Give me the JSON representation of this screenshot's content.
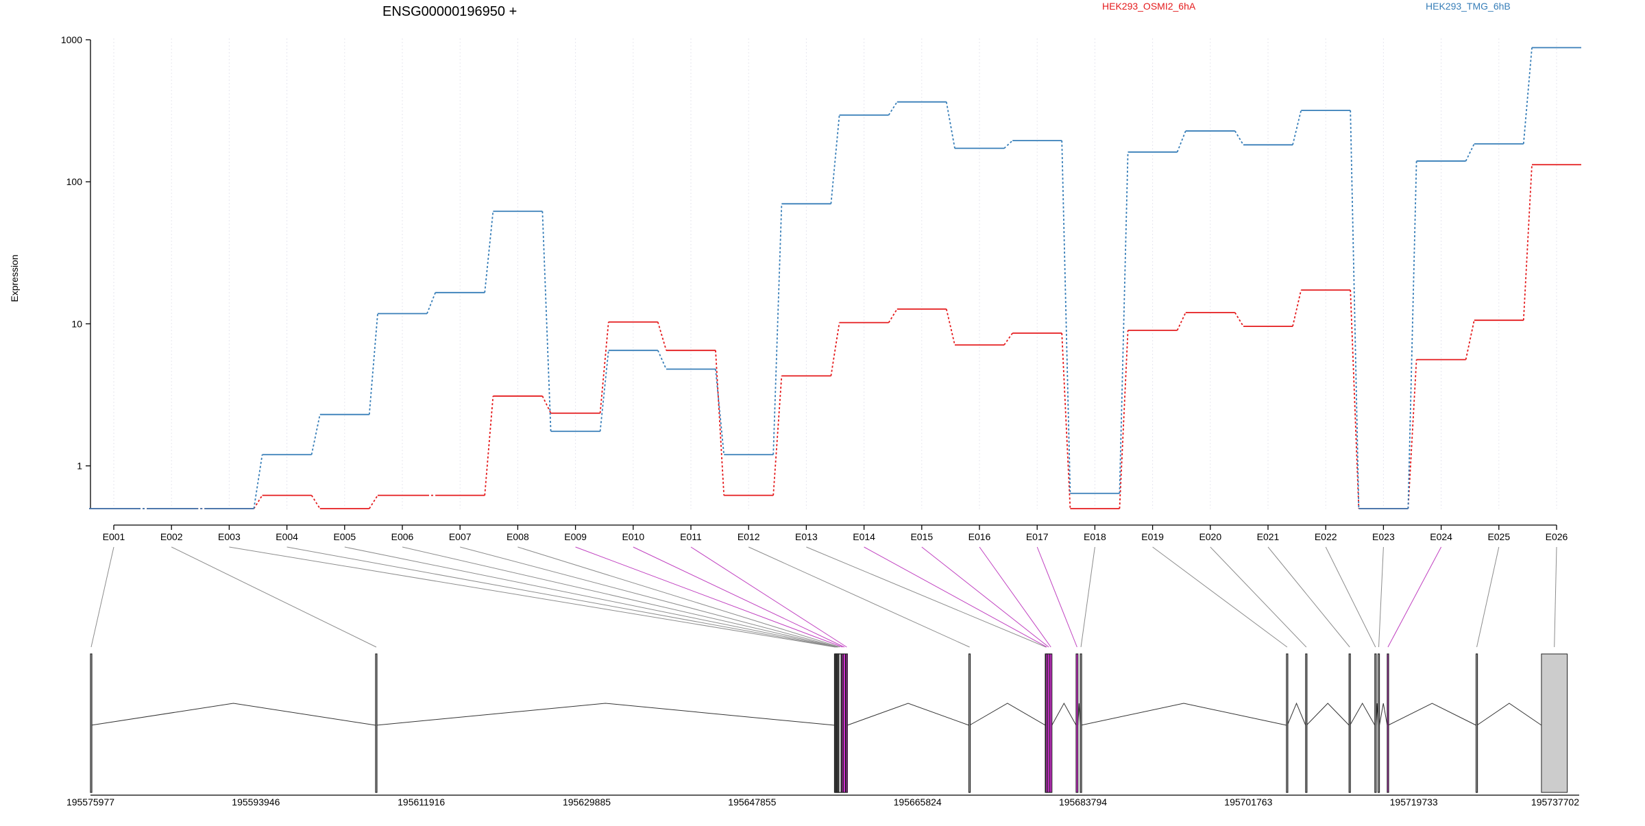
{
  "chart_data": {
    "type": "line",
    "title": "ENSG00000196950 +",
    "ylabel": "Expression",
    "xlabel": "",
    "y_scale": "log",
    "ylim": [
      0.5,
      1000
    ],
    "y_ticks": [
      1,
      10,
      100,
      1000
    ],
    "y_tick_labels": [
      "1",
      "10",
      "100",
      "1000"
    ],
    "grid": "vertical dotted lines at each exon",
    "legend_placement": "top",
    "categories": [
      "E001",
      "E002",
      "E003",
      "E004",
      "E005",
      "E006",
      "E007",
      "E008",
      "E009",
      "E010",
      "E011",
      "E012",
      "E013",
      "E014",
      "E015",
      "E016",
      "E017",
      "E018",
      "E019",
      "E020",
      "E021",
      "E022",
      "E023",
      "E024",
      "E025",
      "E026"
    ],
    "series": [
      {
        "name": "HEK293_OSMI2_6hA",
        "color": "#e41a1c",
        "values": [
          0.5,
          0.5,
          0.5,
          0.62,
          0.5,
          0.62,
          0.62,
          3.1,
          2.35,
          10.3,
          6.5,
          0.62,
          4.3,
          10.2,
          12.7,
          7.1,
          8.6,
          0.5,
          9.0,
          12.0,
          9.6,
          17.3,
          0.5,
          5.6,
          10.6,
          132
        ]
      },
      {
        "name": "HEK293_TMG_6hB",
        "color": "#377eb8",
        "values": [
          0.5,
          0.5,
          0.5,
          1.2,
          2.3,
          11.8,
          16.6,
          62,
          1.75,
          6.5,
          4.8,
          1.2,
          70,
          295,
          365,
          172,
          195,
          0.64,
          162,
          228,
          182,
          318,
          0.5,
          140,
          185,
          880
        ]
      }
    ],
    "gene_model": {
      "coordinate_labels": [
        "195575977",
        "195593946",
        "195611916",
        "195629885",
        "195647855",
        "195665824",
        "195683794",
        "195701763",
        "195719733",
        "195737702"
      ],
      "exons": [
        {
          "id": "E001",
          "start": 195575977,
          "end": 195576050,
          "highlight": false
        },
        {
          "id": "E002",
          "start": 195606950,
          "end": 195607030,
          "highlight": false
        },
        {
          "id": "E003",
          "start": 195656800,
          "end": 195656870,
          "highlight": false
        },
        {
          "id": "E004",
          "start": 195656890,
          "end": 195656960,
          "highlight": false
        },
        {
          "id": "E005",
          "start": 195656980,
          "end": 195657050,
          "highlight": false
        },
        {
          "id": "E006",
          "start": 195657070,
          "end": 195657140,
          "highlight": false
        },
        {
          "id": "E007",
          "start": 195657160,
          "end": 195657240,
          "highlight": false
        },
        {
          "id": "E008",
          "start": 195657260,
          "end": 195657540,
          "highlight": false
        },
        {
          "id": "E009",
          "start": 195657600,
          "end": 195657750,
          "highlight": true
        },
        {
          "id": "E010",
          "start": 195657760,
          "end": 195657990,
          "highlight": true
        },
        {
          "id": "E011",
          "start": 195658060,
          "end": 195658200,
          "highlight": true
        },
        {
          "id": "E012",
          "start": 195671400,
          "end": 195671480,
          "highlight": false
        },
        {
          "id": "E013",
          "start": 195679700,
          "end": 195679770,
          "highlight": false
        },
        {
          "id": "E014",
          "start": 195679780,
          "end": 195679960,
          "highlight": true
        },
        {
          "id": "E015",
          "start": 195679970,
          "end": 195680190,
          "highlight": true
        },
        {
          "id": "E016",
          "start": 195680200,
          "end": 195680420,
          "highlight": true
        },
        {
          "id": "E017",
          "start": 195683050,
          "end": 195683250,
          "highlight": true
        },
        {
          "id": "E018",
          "start": 195683500,
          "end": 195683580,
          "highlight": false
        },
        {
          "id": "E019",
          "start": 195705900,
          "end": 195706000,
          "highlight": false
        },
        {
          "id": "E020",
          "start": 195707980,
          "end": 195708080,
          "highlight": false
        },
        {
          "id": "E021",
          "start": 195712700,
          "end": 195712800,
          "highlight": false
        },
        {
          "id": "E022",
          "start": 195715500,
          "end": 195715650,
          "highlight": false
        },
        {
          "id": "E023",
          "start": 195715850,
          "end": 195716000,
          "highlight": false
        },
        {
          "id": "E024",
          "start": 195716850,
          "end": 195716950,
          "highlight": true
        },
        {
          "id": "E025",
          "start": 195726500,
          "end": 195726600,
          "highlight": false
        },
        {
          "id": "E026",
          "start": 195733600,
          "end": 195736400,
          "highlight": false
        }
      ]
    }
  }
}
